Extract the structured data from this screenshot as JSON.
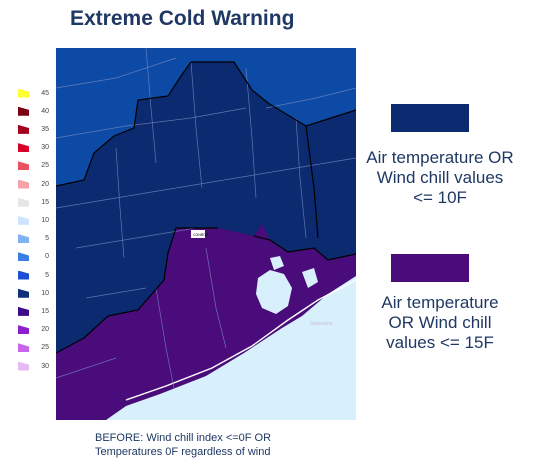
{
  "title": "Extreme Cold Warning",
  "colors": {
    "cold_blue": "#0c4aa6",
    "navy": "#0b2a6f",
    "purple": "#4a0c7a",
    "water": "#d7f0fb"
  },
  "scale": [
    {
      "label": "45",
      "color": "#ffff33"
    },
    {
      "label": "40",
      "color": "#7a0012"
    },
    {
      "label": "35",
      "color": "#a5001d"
    },
    {
      "label": "30",
      "color": "#d7002a"
    },
    {
      "label": "25",
      "color": "#ea5160"
    },
    {
      "label": "20",
      "color": "#f5a2a9"
    },
    {
      "label": "15",
      "color": "#e6e6e6"
    },
    {
      "label": "10",
      "color": "#cfe4ff"
    },
    {
      "label": "5",
      "color": "#7fb2f2"
    },
    {
      "label": "0",
      "color": "#3b7fe6"
    },
    {
      "label": "5",
      "color": "#1d4fd6"
    },
    {
      "label": "10",
      "color": "#10307a"
    },
    {
      "label": "15",
      "color": "#3d0a8a"
    },
    {
      "label": "20",
      "color": "#8a20d0"
    },
    {
      "label": "25",
      "color": "#c766ec"
    },
    {
      "label": "30",
      "color": "#e7b9f5"
    }
  ],
  "legend": [
    {
      "text": "Air temperature OR\nWind chill values\n<= 10F",
      "color": "#0b2a6f"
    },
    {
      "text": "Air temperature\nOR Wind chill\nvalues <= 15F",
      "color": "#4a0c7a"
    }
  ],
  "map_labels": {
    "city_marker": "CONROE",
    "galveston": "Galveston"
  },
  "footnote": "BEFORE: Wind chill index <=0F OR\nTemperatures 0F regardless of wind"
}
